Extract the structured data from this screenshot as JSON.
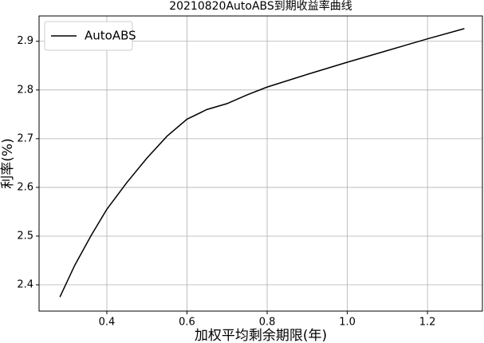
{
  "chart_data": {
    "type": "line",
    "title": "20210820AutoABS到期收益率曲线",
    "x_label": "加权平均剩余期限(年)",
    "y_label": "利率(%)",
    "x": [
      0.283,
      0.32,
      0.36,
      0.4,
      0.45,
      0.5,
      0.55,
      0.6,
      0.65,
      0.7,
      0.75,
      0.8,
      0.9,
      1.0,
      1.1,
      1.2,
      1.292
    ],
    "series": [
      {
        "name": "AutoABS",
        "color": "#000000",
        "values": [
          2.375,
          2.44,
          2.5,
          2.555,
          2.61,
          2.66,
          2.705,
          2.74,
          2.76,
          2.772,
          2.79,
          2.806,
          2.832,
          2.857,
          2.881,
          2.905,
          2.926
        ]
      }
    ],
    "xlim": [
      0.231,
      1.337
    ],
    "ylim": [
      2.346,
      2.952
    ],
    "xticks": [
      0.4,
      0.6,
      0.8,
      {
        "value": 1,
        "label": "1.0"
      },
      1.2
    ],
    "yticks": [
      2.4,
      2.5,
      2.6,
      2.7,
      2.8,
      2.9
    ],
    "grid": true,
    "legend": "upper-left"
  }
}
